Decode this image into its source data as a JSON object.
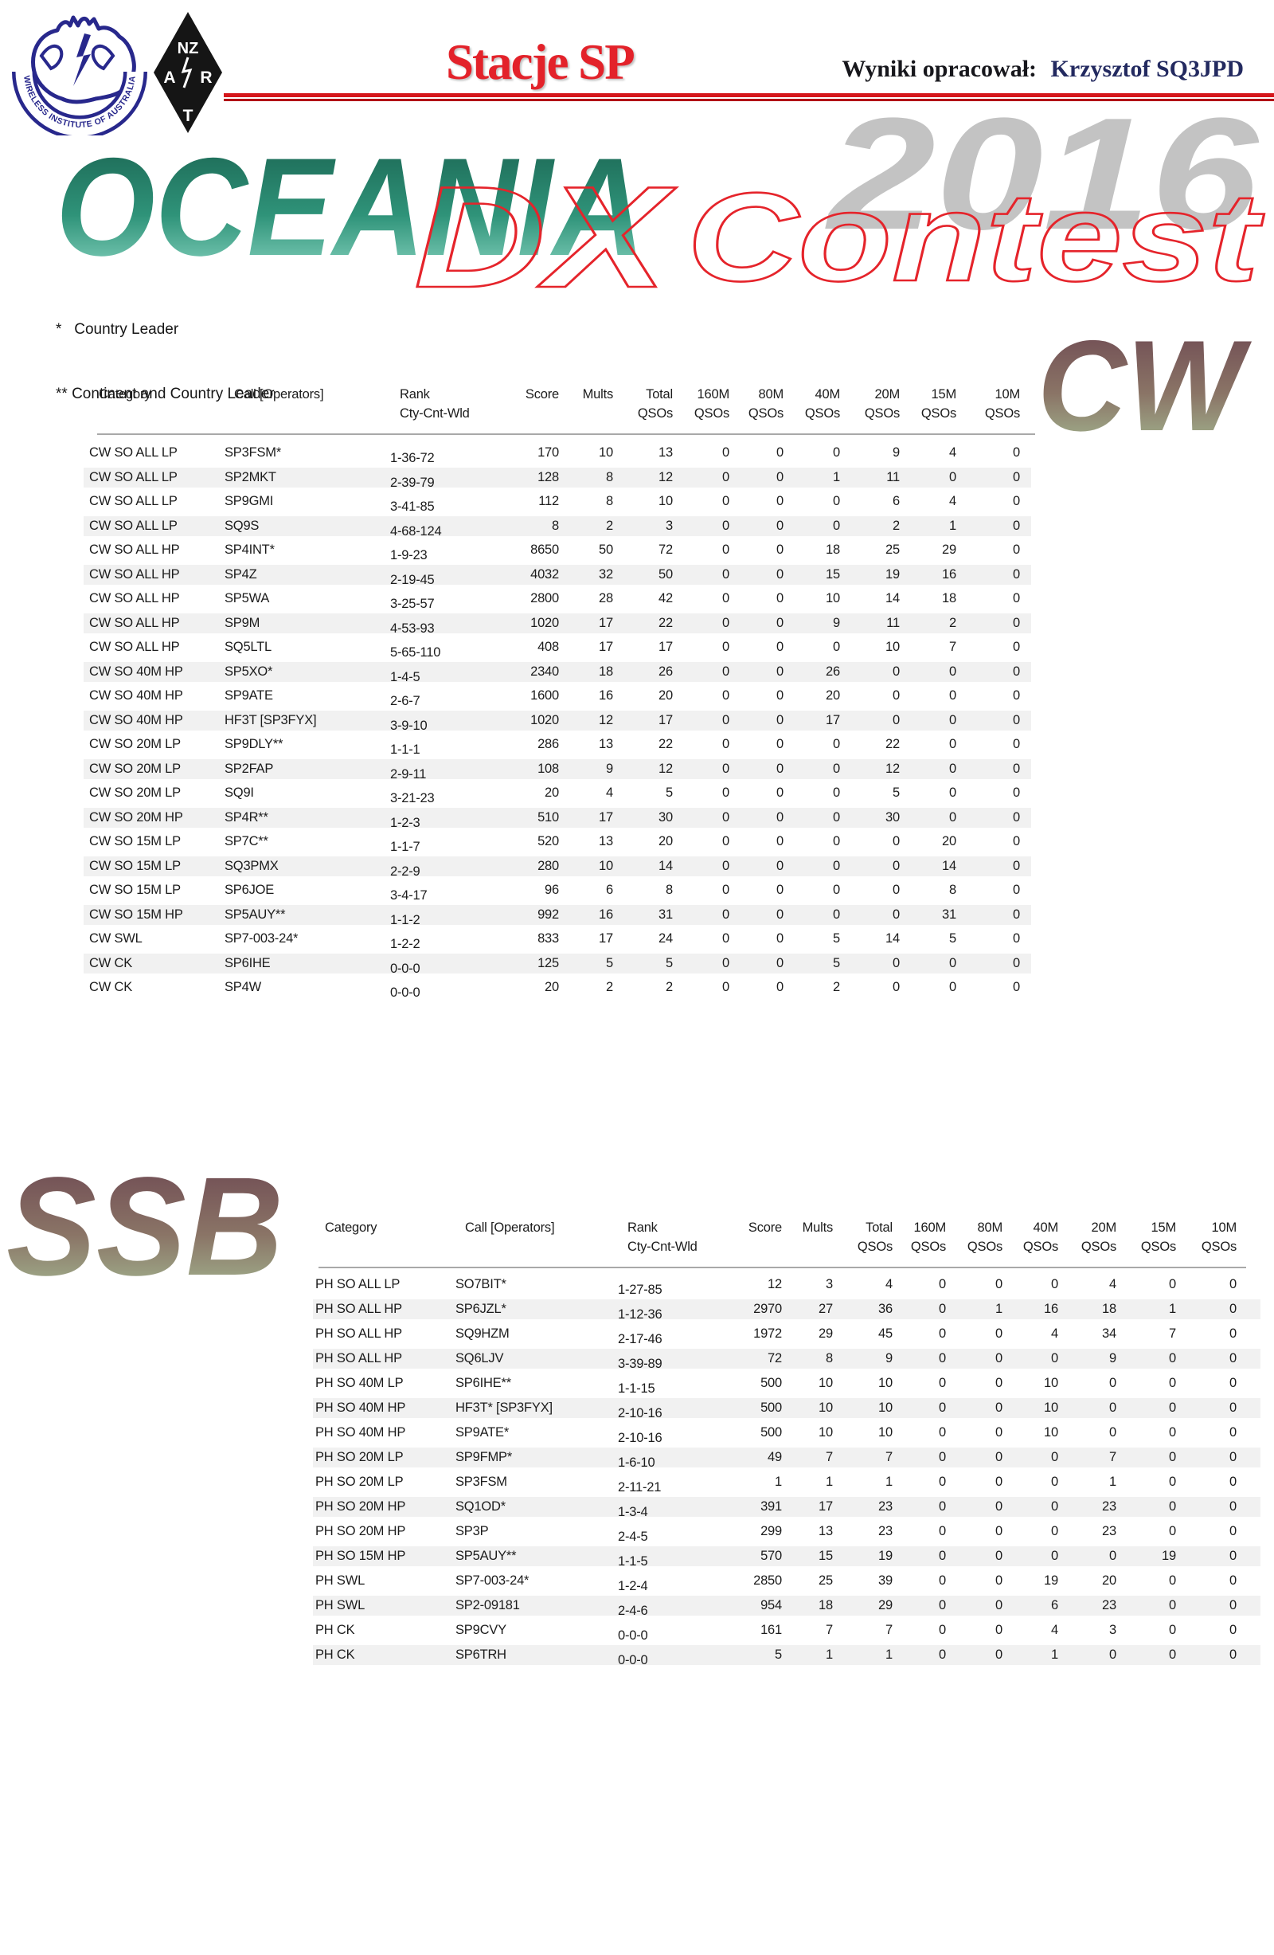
{
  "header": {
    "wia_logo_alt": "Wireless Institute of Australia",
    "wia_banner_text": "WIRELESS INSTITUTE OF AUSTRALIA",
    "nzart_letters": {
      "top": "NZ",
      "left": "A",
      "right": "R",
      "bottom": "T"
    },
    "title": "Stacje SP",
    "credit_label": "Wyniki opracował:",
    "credit_name": "Krzysztof SQ3JPD"
  },
  "banner": {
    "oceania": "OCEANIA",
    "dx": "DX",
    "contest": "Contest",
    "year": "2016"
  },
  "notes": {
    "line1": "*   Country Leader",
    "line2": "** Continent and Country Leader"
  },
  "columns": [
    {
      "key": "category",
      "line1": "Category",
      "line2": ""
    },
    {
      "key": "call",
      "line1": "Call [Operators]",
      "line2": ""
    },
    {
      "key": "rank",
      "line1": "Rank",
      "line2": "Cty-Cnt-Wld"
    },
    {
      "key": "score",
      "line1": "Score",
      "line2": ""
    },
    {
      "key": "mults",
      "line1": "Mults",
      "line2": ""
    },
    {
      "key": "total-qsos",
      "line1": "Total",
      "line2": "QSOs"
    },
    {
      "key": "160m-qsos",
      "line1": "160M",
      "line2": "QSOs"
    },
    {
      "key": "80m-qsos",
      "line1": "80M",
      "line2": "QSOs"
    },
    {
      "key": "40m-qsos",
      "line1": "40M",
      "line2": "QSOs"
    },
    {
      "key": "20m-qsos",
      "line1": "20M",
      "line2": "QSOs"
    },
    {
      "key": "15m-qsos",
      "line1": "15M",
      "line2": "QSOs"
    },
    {
      "key": "10m-qsos",
      "line1": "10M",
      "line2": "QSOs"
    }
  ],
  "cw": {
    "label": "CW",
    "rows": [
      [
        "CW SO ALL LP",
        "SP3FSM*",
        "1-36-72",
        "170",
        "10",
        "13",
        "0",
        "0",
        "0",
        "9",
        "4",
        "0"
      ],
      [
        "CW SO ALL LP",
        "SP2MKT",
        "2-39-79",
        "128",
        "8",
        "12",
        "0",
        "0",
        "1",
        "11",
        "0",
        "0"
      ],
      [
        "CW SO ALL LP",
        "SP9GMI",
        "3-41-85",
        "112",
        "8",
        "10",
        "0",
        "0",
        "0",
        "6",
        "4",
        "0"
      ],
      [
        "CW SO ALL LP",
        "SQ9S",
        "4-68-124",
        "8",
        "2",
        "3",
        "0",
        "0",
        "0",
        "2",
        "1",
        "0"
      ],
      [
        "CW SO ALL HP",
        "SP4INT*",
        "1-9-23",
        "8650",
        "50",
        "72",
        "0",
        "0",
        "18",
        "25",
        "29",
        "0"
      ],
      [
        "CW SO ALL HP",
        "SP4Z",
        "2-19-45",
        "4032",
        "32",
        "50",
        "0",
        "0",
        "15",
        "19",
        "16",
        "0"
      ],
      [
        "CW SO ALL HP",
        "SP5WA",
        "3-25-57",
        "2800",
        "28",
        "42",
        "0",
        "0",
        "10",
        "14",
        "18",
        "0"
      ],
      [
        "CW SO ALL HP",
        "SP9M",
        "4-53-93",
        "1020",
        "17",
        "22",
        "0",
        "0",
        "9",
        "11",
        "2",
        "0"
      ],
      [
        "CW SO ALL HP",
        "SQ5LTL",
        "5-65-110",
        "408",
        "17",
        "17",
        "0",
        "0",
        "0",
        "10",
        "7",
        "0"
      ],
      [
        "CW SO 40M HP",
        "SP5XO*",
        "1-4-5",
        "2340",
        "18",
        "26",
        "0",
        "0",
        "26",
        "0",
        "0",
        "0"
      ],
      [
        "CW SO 40M HP",
        "SP9ATE",
        "2-6-7",
        "1600",
        "16",
        "20",
        "0",
        "0",
        "20",
        "0",
        "0",
        "0"
      ],
      [
        "CW SO 40M HP",
        "HF3T [SP3FYX]",
        "3-9-10",
        "1020",
        "12",
        "17",
        "0",
        "0",
        "17",
        "0",
        "0",
        "0"
      ],
      [
        "CW SO 20M LP",
        "SP9DLY**",
        "1-1-1",
        "286",
        "13",
        "22",
        "0",
        "0",
        "0",
        "22",
        "0",
        "0"
      ],
      [
        "CW SO 20M LP",
        "SP2FAP",
        "2-9-11",
        "108",
        "9",
        "12",
        "0",
        "0",
        "0",
        "12",
        "0",
        "0"
      ],
      [
        "CW SO 20M LP",
        "SQ9I",
        "3-21-23",
        "20",
        "4",
        "5",
        "0",
        "0",
        "0",
        "5",
        "0",
        "0"
      ],
      [
        "CW SO 20M HP",
        "SP4R**",
        "1-2-3",
        "510",
        "17",
        "30",
        "0",
        "0",
        "0",
        "30",
        "0",
        "0"
      ],
      [
        "CW SO 15M LP",
        "SP7C**",
        "1-1-7",
        "520",
        "13",
        "20",
        "0",
        "0",
        "0",
        "0",
        "20",
        "0"
      ],
      [
        "CW SO 15M LP",
        "SQ3PMX",
        "2-2-9",
        "280",
        "10",
        "14",
        "0",
        "0",
        "0",
        "0",
        "14",
        "0"
      ],
      [
        "CW SO 15M LP",
        "SP6JOE",
        "3-4-17",
        "96",
        "6",
        "8",
        "0",
        "0",
        "0",
        "0",
        "8",
        "0"
      ],
      [
        "CW SO 15M HP",
        "SP5AUY**",
        "1-1-2",
        "992",
        "16",
        "31",
        "0",
        "0",
        "0",
        "0",
        "31",
        "0"
      ],
      [
        "CW SWL",
        "SP7-003-24*",
        "1-2-2",
        "833",
        "17",
        "24",
        "0",
        "0",
        "5",
        "14",
        "5",
        "0"
      ],
      [
        "CW CK",
        "SP6IHE",
        "0-0-0",
        "125",
        "5",
        "5",
        "0",
        "0",
        "5",
        "0",
        "0",
        "0"
      ],
      [
        "CW CK",
        "SP4W",
        "0-0-0",
        "20",
        "2",
        "2",
        "0",
        "0",
        "2",
        "0",
        "0",
        "0"
      ]
    ]
  },
  "ssb": {
    "label": "SSB",
    "rows": [
      [
        "PH SO ALL LP",
        "SO7BIT*",
        "1-27-85",
        "12",
        "3",
        "4",
        "0",
        "0",
        "0",
        "4",
        "0",
        "0"
      ],
      [
        "PH SO ALL HP",
        "SP6JZL*",
        "1-12-36",
        "2970",
        "27",
        "36",
        "0",
        "1",
        "16",
        "18",
        "1",
        "0"
      ],
      [
        "PH SO ALL HP",
        "SQ9HZM",
        "2-17-46",
        "1972",
        "29",
        "45",
        "0",
        "0",
        "4",
        "34",
        "7",
        "0"
      ],
      [
        "PH SO ALL HP",
        "SQ6LJV",
        "3-39-89",
        "72",
        "8",
        "9",
        "0",
        "0",
        "0",
        "9",
        "0",
        "0"
      ],
      [
        "PH SO 40M LP",
        "SP6IHE**",
        "1-1-15",
        "500",
        "10",
        "10",
        "0",
        "0",
        "10",
        "0",
        "0",
        "0"
      ],
      [
        "PH SO 40M HP",
        "HF3T* [SP3FYX]",
        "2-10-16",
        "500",
        "10",
        "10",
        "0",
        "0",
        "10",
        "0",
        "0",
        "0"
      ],
      [
        "PH SO 40M HP",
        "SP9ATE*",
        "2-10-16",
        "500",
        "10",
        "10",
        "0",
        "0",
        "10",
        "0",
        "0",
        "0"
      ],
      [
        "PH SO 20M LP",
        "SP9FMP*",
        "1-6-10",
        "49",
        "7",
        "7",
        "0",
        "0",
        "0",
        "7",
        "0",
        "0"
      ],
      [
        "PH SO 20M LP",
        "SP3FSM",
        "2-11-21",
        "1",
        "1",
        "1",
        "0",
        "0",
        "0",
        "1",
        "0",
        "0"
      ],
      [
        "PH SO 20M HP",
        "SQ1OD*",
        "1-3-4",
        "391",
        "17",
        "23",
        "0",
        "0",
        "0",
        "23",
        "0",
        "0"
      ],
      [
        "PH SO 20M HP",
        "SP3P",
        "2-4-5",
        "299",
        "13",
        "23",
        "0",
        "0",
        "0",
        "23",
        "0",
        "0"
      ],
      [
        "PH SO 15M HP",
        "SP5AUY**",
        "1-1-5",
        "570",
        "15",
        "19",
        "0",
        "0",
        "0",
        "0",
        "19",
        "0"
      ],
      [
        "PH SWL",
        "SP7-003-24*",
        "1-2-4",
        "2850",
        "25",
        "39",
        "0",
        "0",
        "19",
        "20",
        "0",
        "0"
      ],
      [
        "PH SWL",
        "SP2-09181",
        "2-4-6",
        "954",
        "18",
        "29",
        "0",
        "0",
        "6",
        "23",
        "0",
        "0"
      ],
      [
        "PH CK",
        "SP9CVY",
        "0-0-0",
        "161",
        "7",
        "7",
        "0",
        "0",
        "4",
        "3",
        "0",
        "0"
      ],
      [
        "PH CK",
        "SP6TRH",
        "0-0-0",
        "5",
        "1",
        "1",
        "0",
        "0",
        "1",
        "0",
        "0",
        "0"
      ]
    ]
  },
  "colors": {
    "accent_red": "#d5161b",
    "title_red": "#e3222a",
    "credit_navy": "#232a60",
    "oceania_gradient_top": "#19614f",
    "oceania_gradient_bottom": "#93dcc9",
    "mode_gradient_top": "#6b4450",
    "mode_gradient_bottom": "#a6bf96",
    "year_gray": "#c3c3c3",
    "row_stripe": "#f1f1f1",
    "wia_navy": "#28288c"
  }
}
